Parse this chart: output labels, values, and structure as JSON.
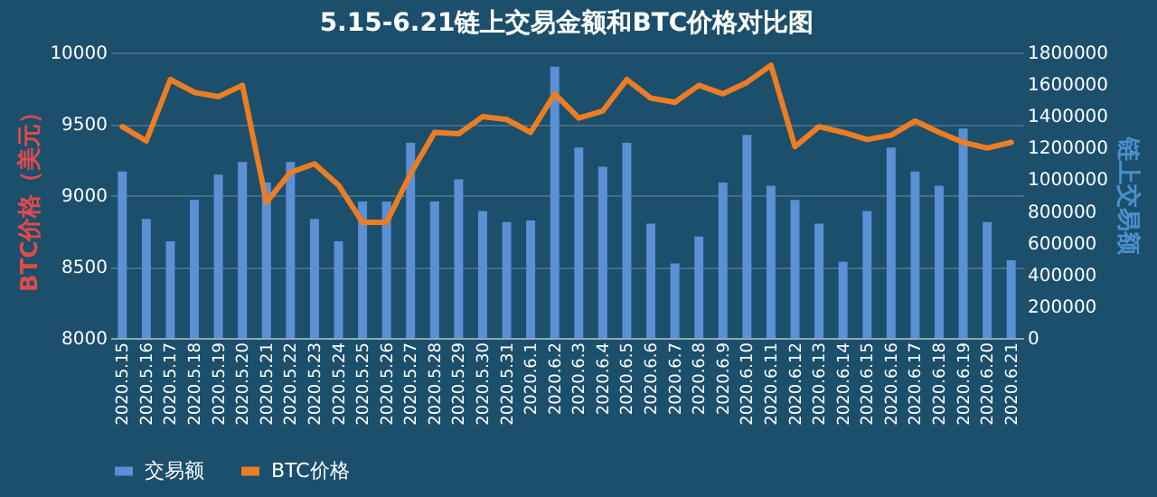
{
  "chart_data": {
    "type": "bar",
    "title": "5.15-6.21链上交易金额和BTC价格对比图",
    "ylabel": "BTC价格（美元）",
    "y2label": "链上交易额",
    "categories": [
      "2020.5.15",
      "2020.5.16",
      "2020.5.17",
      "2020.5.18",
      "2020.5.19",
      "2020.5.20",
      "2020.5.21",
      "2020.5.22",
      "2020.5.23",
      "2020.5.24",
      "2020.5.25",
      "2020.5.26",
      "2020.5.27",
      "2020.5.28",
      "2020.5.29",
      "2020.5.30",
      "2020.5.31",
      "2020.6.1",
      "2020.6.2",
      "2020.6.3",
      "2020.6.4",
      "2020.6.5",
      "2020.6.6",
      "2020.6.7",
      "2020.6.8",
      "2020.6.9",
      "2020.6.10",
      "2020.6.11",
      "2020.6.12",
      "2020.6.13",
      "2020.6.14",
      "2020.6.15",
      "2020.6.16",
      "2020.6.17",
      "2020.6.18",
      "2020.6.19",
      "2020.6.20",
      "2020.6.21"
    ],
    "series": [
      {
        "name": "交易额",
        "axis": "y2",
        "color": "#5b8fd6",
        "values": [
          1050000,
          750000,
          610000,
          870000,
          1030000,
          1110000,
          980000,
          1110000,
          750000,
          610000,
          860000,
          860000,
          1230000,
          860000,
          1000000,
          800000,
          730000,
          740000,
          1710000,
          1200000,
          1080000,
          1230000,
          720000,
          470000,
          640000,
          980000,
          1280000,
          960000,
          870000,
          720000,
          480000,
          800000,
          1200000,
          1050000,
          960000,
          1320000,
          730000,
          490000
        ]
      },
      {
        "name": "BTC价格",
        "type": "line",
        "axis": "y",
        "color": "#ed7d22",
        "values": [
          9480,
          9380,
          9810,
          9720,
          9690,
          9770,
          8950,
          9160,
          9220,
          9070,
          8810,
          8810,
          9150,
          9440,
          9430,
          9550,
          9530,
          9440,
          9710,
          9540,
          9590,
          9810,
          9680,
          9650,
          9770,
          9710,
          9790,
          9910,
          9340,
          9480,
          9440,
          9390,
          9420,
          9520,
          9440,
          9370,
          9330,
          9370
        ]
      }
    ],
    "ylim": [
      8000,
      10000
    ],
    "yticks": [
      8000,
      8500,
      9000,
      9500,
      10000
    ],
    "y2lim": [
      0,
      1800000
    ],
    "y2ticks": [
      0,
      200000,
      400000,
      600000,
      800000,
      1000000,
      1200000,
      1400000,
      1600000,
      1800000
    ],
    "grid": "y",
    "legend": "bottom"
  }
}
